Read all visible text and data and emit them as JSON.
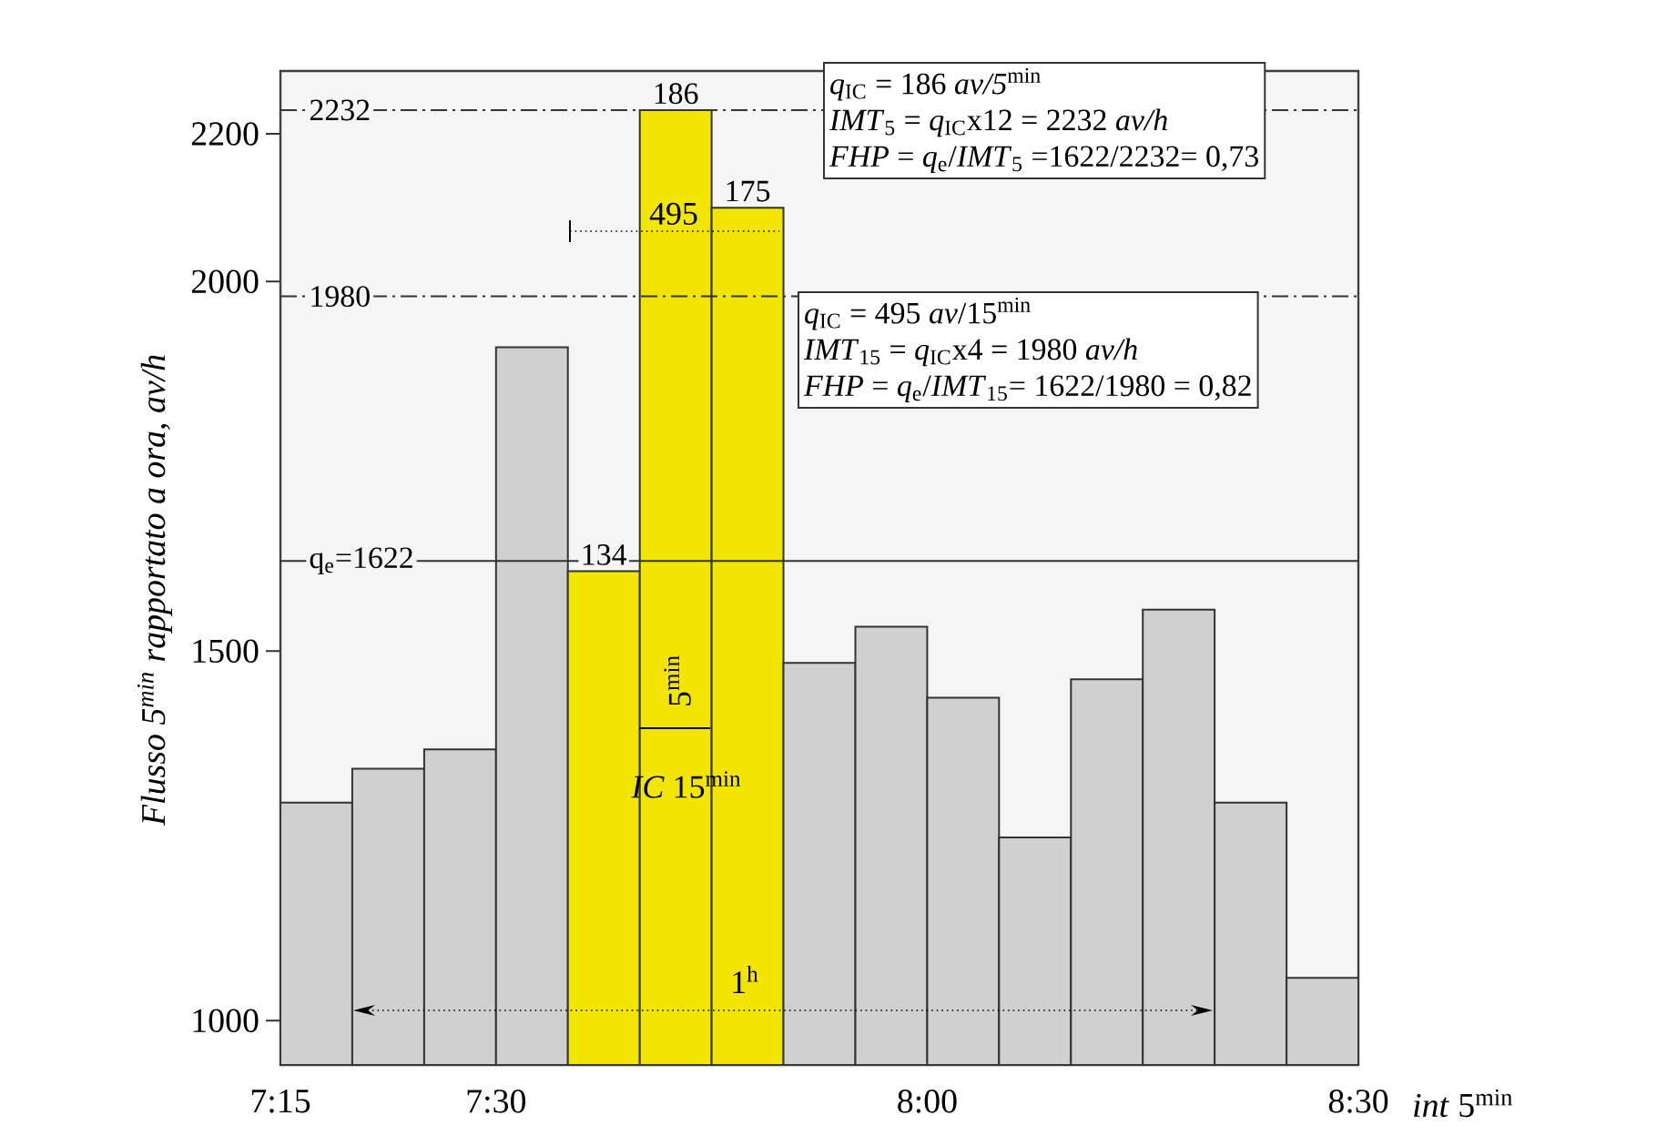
{
  "chart_data": {
    "type": "histogram",
    "bins": [
      7.25,
      7.3333,
      7.4167,
      7.5,
      7.5833,
      7.6667,
      7.75,
      7.8333,
      7.9167,
      8,
      8.0833,
      8.1667,
      8.25,
      8.3333,
      8.4167,
      8.5
    ],
    "values": [
      1295,
      1341,
      1367,
      1911,
      1608,
      2232,
      2100,
      1484,
      1533,
      1437,
      1248,
      1462,
      1556,
      1295,
      1058
    ],
    "colors": [
      "#d0d0d0",
      "#d0d0d0",
      "#d0d0d0",
      "#d0d0d0",
      "#f2e600",
      "#f2e600",
      "#f2e600",
      "#d0d0d0",
      "#d0d0d0",
      "#d0d0d0",
      "#d0d0d0",
      "#d0d0d0",
      "#d0d0d0",
      "#d0d0d0",
      "#d0d0d0"
    ],
    "xlim": [
      7.25,
      8.5
    ],
    "ylim": [
      940,
      2285
    ],
    "xticks": [
      {
        "value": 7.25,
        "label": "7:15"
      },
      {
        "value": 7.5,
        "label": "7:30"
      },
      {
        "value": 8,
        "label": "8:00"
      },
      {
        "value": 8.5,
        "label": "8:30"
      }
    ],
    "yticks": [
      1000,
      1500,
      2000,
      2200
    ],
    "xlabel": "*int* 5$^{min}$",
    "ylabel": "Flusso 5$^{min}$ rapportato a ora, av/h",
    "ref_lines": [
      {
        "axis": "y",
        "value": 2232,
        "label": "2232",
        "line_style": "dashdot",
        "color": "#333333"
      },
      {
        "axis": "y",
        "value": 1980,
        "label": "1980",
        "line_style": "dashdot",
        "color": "#333333"
      },
      {
        "axis": "y",
        "value": 1622,
        "label": "q$_{e}$=1622",
        "line_style": "solid",
        "color": "#333333"
      }
    ],
    "annotations": [
      "*q*$_{IC}$ = 186 *av/5*$^{min}$",
      "*IMT*$_{5}$ = *q*$_{IC}$x12 = 2232 *av/h*",
      "*FHP* = *q*$_{e}$/*IMT*$_{5}$ =1622/2232= 0,73",
      "*q*$_{IC}$ = 495 *av*/15$^{min}$",
      "*IMT*$_{15}$ = *q*$_{IC}$x4 = 1980 *av/h*",
      "*FHP* = *q*$_{e}$/*IMT*$_{15}$= 1622/1980 = 0,82",
      "495",
      "5$^{min}$",
      "*IC* 15$^{min}$",
      "1$^{h}$",
      {
        "text": "134",
        "x": 7.625,
        "y": 1608
      },
      {
        "text": "186",
        "x": 7.7083,
        "y": 2232
      },
      {
        "text": "175",
        "x": 7.7917,
        "y": 2100
      }
    ]
  }
}
